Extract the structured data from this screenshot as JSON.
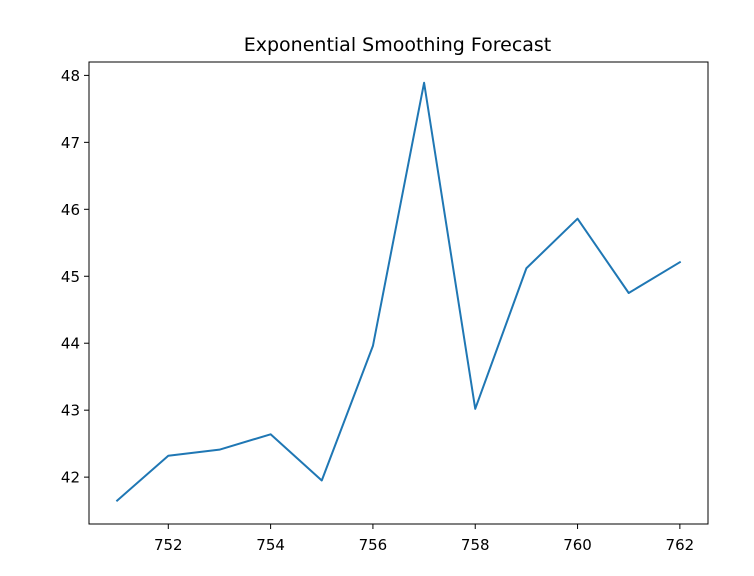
{
  "chart_data": {
    "type": "line",
    "title": "Exponential Smoothing Forecast",
    "xlabel": "",
    "ylabel": "",
    "x": [
      751,
      752,
      753,
      754,
      755,
      756,
      757,
      758,
      759,
      760,
      761,
      762
    ],
    "series": [
      {
        "values": [
          41.65,
          42.32,
          42.41,
          42.64,
          41.95,
          43.96,
          47.89,
          43.02,
          45.12,
          45.86,
          44.75,
          45.21
        ],
        "color": "#1f77b4"
      }
    ],
    "xlim": [
      750.45,
      762.55
    ],
    "ylim": [
      41.3,
      48.2
    ],
    "xticks": [
      752,
      754,
      756,
      758,
      760,
      762
    ],
    "yticks": [
      42,
      43,
      44,
      45,
      46,
      47,
      48
    ],
    "grid": false,
    "legend": "none"
  }
}
